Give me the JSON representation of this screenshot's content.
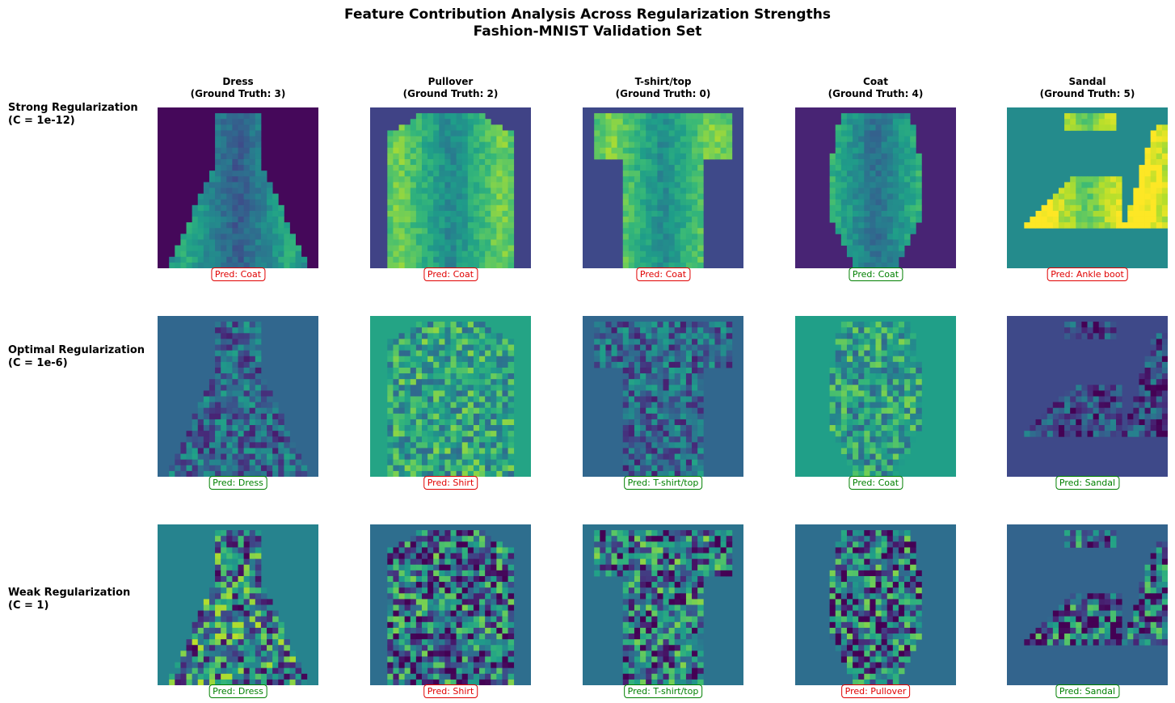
{
  "chart_data": {
    "type": "heatmap",
    "title_line1": "Feature Contribution Analysis Across Regularization Strengths",
    "title_line2": "Fashion-MNIST Validation Set",
    "colormap": "viridis",
    "columns": [
      {
        "name": "Dress",
        "ground_truth": "(Ground Truth: 3)"
      },
      {
        "name": "Pullover",
        "ground_truth": "(Ground Truth: 2)"
      },
      {
        "name": "T-shirt/top",
        "ground_truth": "(Ground Truth: 0)"
      },
      {
        "name": "Coat",
        "ground_truth": "(Ground Truth: 4)"
      },
      {
        "name": "Sandal",
        "ground_truth": "(Ground Truth: 5)"
      }
    ],
    "rows": [
      {
        "label_line1": "Strong Regularization",
        "label_line2": "(C = 1e-12)",
        "predictions": [
          {
            "text": "Pred: Coat",
            "correct": false
          },
          {
            "text": "Pred: Coat",
            "correct": false
          },
          {
            "text": "Pred: Coat",
            "correct": false
          },
          {
            "text": "Pred: Coat",
            "correct": true
          },
          {
            "text": "Pred: Ankle boot",
            "correct": false
          }
        ]
      },
      {
        "label_line1": "Optimal Regularization",
        "label_line2": "(C = 1e-6)",
        "predictions": [
          {
            "text": "Pred: Dress",
            "correct": true
          },
          {
            "text": "Pred: Shirt",
            "correct": false
          },
          {
            "text": "Pred: T-shirt/top",
            "correct": true
          },
          {
            "text": "Pred: Coat",
            "correct": true
          },
          {
            "text": "Pred: Sandal",
            "correct": true
          }
        ]
      },
      {
        "label_line1": "Weak Regularization",
        "label_line2": "(C = 1)",
        "predictions": [
          {
            "text": "Pred: Dress",
            "correct": true
          },
          {
            "text": "Pred: Shirt",
            "correct": false
          },
          {
            "text": "Pred: T-shirt/top",
            "correct": true
          },
          {
            "text": "Pred: Pullover",
            "correct": false
          },
          {
            "text": "Pred: Sandal",
            "correct": true
          }
        ]
      }
    ]
  },
  "colors": {
    "correct": "#008000",
    "wrong": "#e00000"
  }
}
